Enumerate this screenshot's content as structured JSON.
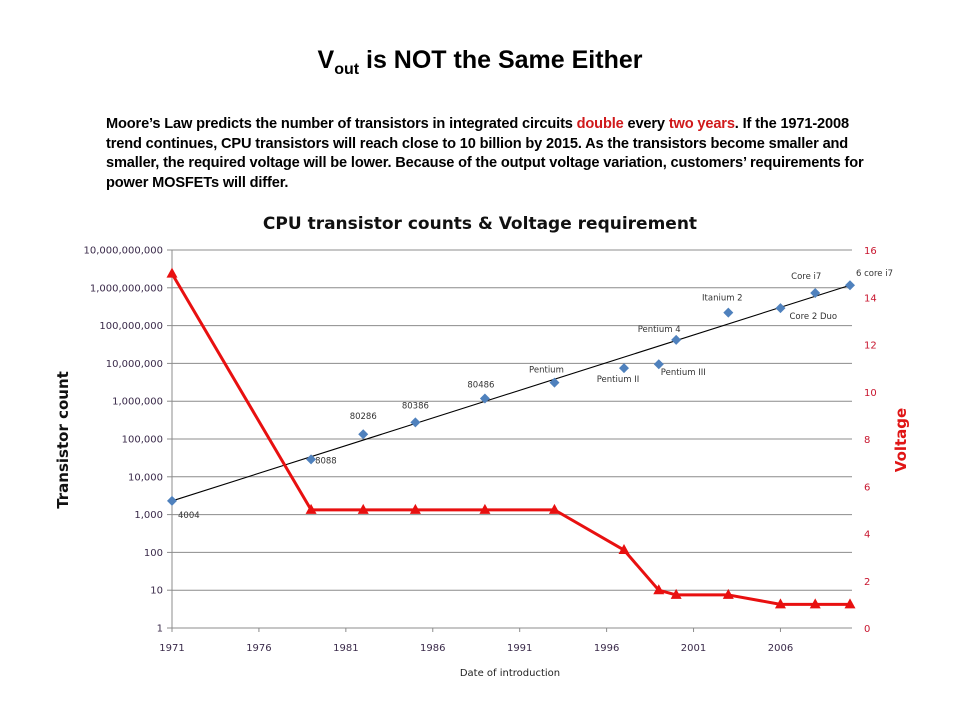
{
  "slide": {
    "title_main": "V",
    "title_sub": "out",
    "title_rest": " is NOT the Same Either",
    "intro": {
      "part1": "Moore’s Law predicts the number of transistors in integrated circuits ",
      "highlight1": "double",
      "part2": " every ",
      "highlight2": "two years",
      "part3": ". If the 1971-2008 trend continues, CPU transistors will reach close to 10 billion by 2015. As the transistors become smaller and smaller, the required voltage will be lower. Because of the output voltage variation, customers’ requirements for power MOSFETs will differ.",
      "highlight_color": "#d0191b"
    }
  },
  "chart_data": {
    "type": "scatter",
    "title": "CPU transistor counts & Voltage requirement",
    "xlabel": "Date of introduction",
    "ylabel": "Transistor count",
    "y2label": "Voltage",
    "xlim": [
      1971,
      2010
    ],
    "xticks": [
      1971,
      1976,
      1981,
      1986,
      1991,
      1996,
      2001,
      2006
    ],
    "y_scale": "log",
    "ylim": [
      1,
      10000000000
    ],
    "yticks": [
      "1",
      "10",
      "100",
      "1,000",
      "10,000",
      "100,000",
      "1,000,000",
      "10,000,000",
      "100,000,000",
      "1,000,000,000",
      "10,000,000,000"
    ],
    "y2lim": [
      0,
      16
    ],
    "y2ticks": [
      0,
      2,
      4,
      6,
      8,
      10,
      12,
      14,
      16
    ],
    "grid": true,
    "series": [
      {
        "name": "Transistor count",
        "axis": "left",
        "marker": "diamond",
        "color": "#4f81bd",
        "points": [
          {
            "label": "4004",
            "x": 1971,
            "y": 2300
          },
          {
            "label": "8088",
            "x": 1979,
            "y": 29000
          },
          {
            "label": "80286",
            "x": 1982,
            "y": 134000
          },
          {
            "label": "80386",
            "x": 1985,
            "y": 275000
          },
          {
            "label": "80486",
            "x": 1989,
            "y": 1180000
          },
          {
            "label": "Pentium",
            "x": 1993,
            "y": 3100000
          },
          {
            "label": "Pentium II",
            "x": 1997,
            "y": 7500000
          },
          {
            "label": "Pentium III",
            "x": 1999,
            "y": 9500000
          },
          {
            "label": "Pentium 4",
            "x": 2000,
            "y": 42000000
          },
          {
            "label": "Itanium 2",
            "x": 2003,
            "y": 220000000
          },
          {
            "label": "Core 2 Duo",
            "x": 2006,
            "y": 291000000
          },
          {
            "label": "Core i7",
            "x": 2008,
            "y": 731000000
          },
          {
            "label": "6 core i7",
            "x": 2010,
            "y": 1170000000
          }
        ]
      },
      {
        "name": "Trend (exponential)",
        "axis": "left",
        "type": "line",
        "color": "#000000",
        "points": [
          {
            "x": 1971,
            "y": 2300
          },
          {
            "x": 2010,
            "y": 1170000000
          }
        ]
      },
      {
        "name": "Voltage",
        "axis": "right",
        "type": "line",
        "marker": "triangle",
        "color": "#e81010",
        "points": [
          {
            "x": 1971,
            "y": 15
          },
          {
            "x": 1979,
            "y": 5
          },
          {
            "x": 1982,
            "y": 5
          },
          {
            "x": 1985,
            "y": 5
          },
          {
            "x": 1989,
            "y": 5
          },
          {
            "x": 1993,
            "y": 5
          },
          {
            "x": 1997,
            "y": 3.3
          },
          {
            "x": 1999,
            "y": 1.6
          },
          {
            "x": 2000,
            "y": 1.4
          },
          {
            "x": 2003,
            "y": 1.4
          },
          {
            "x": 2006,
            "y": 1.0
          },
          {
            "x": 2008,
            "y": 1.0
          },
          {
            "x": 2010,
            "y": 1.0
          }
        ]
      }
    ]
  }
}
